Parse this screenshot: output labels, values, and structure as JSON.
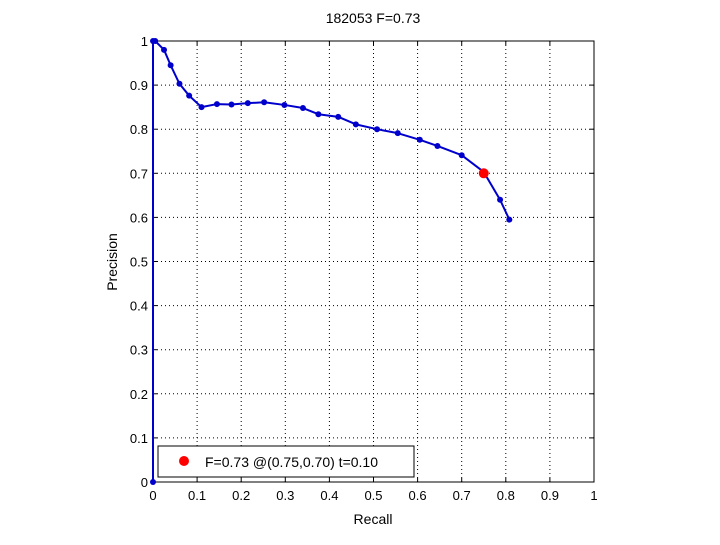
{
  "chart_data": {
    "type": "line",
    "title": "182053 F=0.73",
    "xlabel": "Recall",
    "ylabel": "Precision",
    "xlim": [
      0,
      1
    ],
    "ylim": [
      0,
      1
    ],
    "grid": true,
    "grid_style": "dotted",
    "xticks": [
      "0",
      "0.1",
      "0.2",
      "0.3",
      "0.4",
      "0.5",
      "0.6",
      "0.7",
      "0.8",
      "0.9",
      "1"
    ],
    "yticks": [
      "0",
      "0.1",
      "0.2",
      "0.3",
      "0.4",
      "0.5",
      "0.6",
      "0.7",
      "0.8",
      "0.9",
      "1"
    ],
    "series": [
      {
        "color": "#0000cc",
        "marker": "dot",
        "points": [
          [
            0.0,
            0.0
          ],
          [
            0.0,
            1.0
          ],
          [
            0.005,
            1.0
          ],
          [
            0.025,
            0.98
          ],
          [
            0.04,
            0.945
          ],
          [
            0.06,
            0.903
          ],
          [
            0.082,
            0.876
          ],
          [
            0.11,
            0.85
          ],
          [
            0.145,
            0.857
          ],
          [
            0.178,
            0.856
          ],
          [
            0.215,
            0.859
          ],
          [
            0.252,
            0.861
          ],
          [
            0.298,
            0.855
          ],
          [
            0.34,
            0.848
          ],
          [
            0.375,
            0.834
          ],
          [
            0.42,
            0.828
          ],
          [
            0.46,
            0.811
          ],
          [
            0.508,
            0.8
          ],
          [
            0.555,
            0.791
          ],
          [
            0.605,
            0.776
          ],
          [
            0.645,
            0.762
          ],
          [
            0.7,
            0.741
          ],
          [
            0.75,
            0.703
          ],
          [
            0.787,
            0.64
          ],
          [
            0.808,
            0.595
          ]
        ]
      }
    ],
    "best_point": {
      "x": 0.75,
      "y": 0.7,
      "color": "#ff0000"
    },
    "legend": {
      "placement": "bottom-left",
      "entries": [
        {
          "label": "F=0.73 @(0.75,0.70) t=0.10",
          "color": "#ff0000",
          "marker": "dot"
        }
      ]
    }
  }
}
